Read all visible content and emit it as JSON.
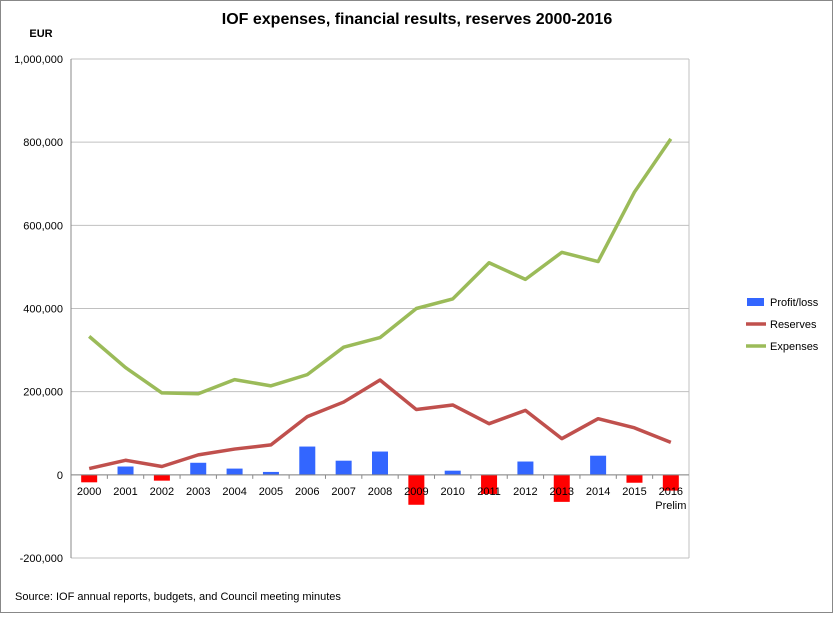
{
  "chart_data": {
    "type": "bar+line",
    "title": "IOF expenses, financial results, reserves 2000-2016",
    "ylabel": "EUR",
    "source": "Source: IOF annual reports, budgets, and Council meeting minutes",
    "ylim": [
      -200000,
      1000000
    ],
    "yticks": [
      -200000,
      0,
      200000,
      400000,
      600000,
      800000,
      1000000
    ],
    "ytick_labels": [
      "-200,000",
      "0",
      "200,000",
      "400,000",
      "600,000",
      "800,000",
      "1,000,000"
    ],
    "grid": true,
    "legend_position": "right",
    "categories": [
      "2000",
      "2001",
      "2002",
      "2003",
      "2004",
      "2005",
      "2006",
      "2007",
      "2008",
      "2009",
      "2010",
      "2011",
      "2012",
      "2013",
      "2014",
      "2015",
      "2016"
    ],
    "category_sublabel": {
      "2016": "Prelim"
    },
    "series": [
      {
        "name": "Profit/loss",
        "kind": "bar",
        "color": "#3366ff",
        "negative_color": "#ff0000",
        "values": [
          -18000,
          20000,
          -14000,
          29000,
          15000,
          7000,
          68000,
          34000,
          56000,
          -72000,
          10000,
          -46000,
          32000,
          -65000,
          46000,
          -19000,
          -38000
        ]
      },
      {
        "name": "Reserves",
        "kind": "line",
        "color": "#c0504d",
        "values": [
          15000,
          35000,
          20000,
          48000,
          62000,
          72000,
          140000,
          175000,
          228000,
          157000,
          168000,
          123000,
          155000,
          87000,
          135000,
          113000,
          78000
        ]
      },
      {
        "name": "Expenses",
        "kind": "line",
        "color": "#9bbb59",
        "values": [
          333000,
          258000,
          197000,
          195000,
          229000,
          214000,
          241000,
          307000,
          330000,
          400000,
          423000,
          510000,
          470000,
          535000,
          513000,
          680000,
          808000
        ]
      }
    ]
  }
}
